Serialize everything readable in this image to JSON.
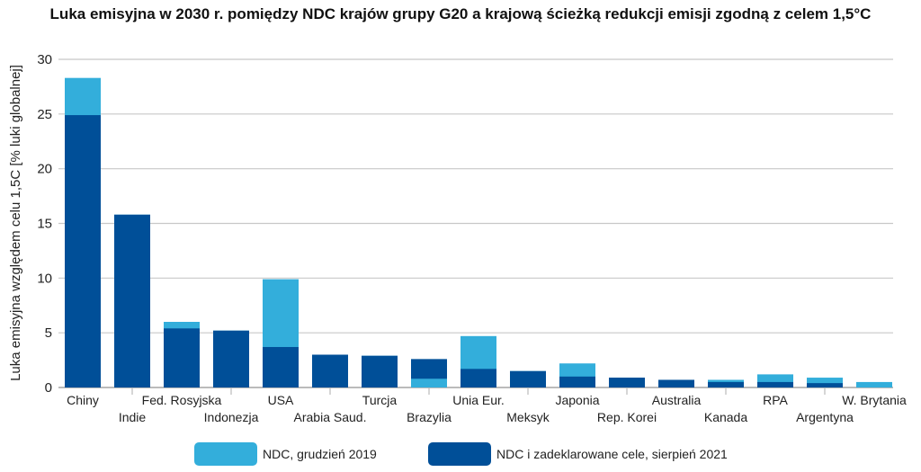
{
  "chart_data": {
    "type": "bar",
    "title": "Luka emisyjna w 2030 r. pomiędzy NDC krajów grupy G20 a krajową ścieżką redukcji emisji zgodną z celem 1,5°C",
    "xlabel": "",
    "ylabel": "Luka emisyjna względem celu 1,5C [% luki globalnej]",
    "ylim": [
      0,
      30
    ],
    "yticks": [
      "0",
      "5",
      "10",
      "15",
      "20",
      "25",
      "30"
    ],
    "grid": true,
    "legend_position": "bottom",
    "categories": [
      "Chiny",
      "Indie",
      "Fed. Rosyjska",
      "Indonezja",
      "USA",
      "Arabia Saud.",
      "Turcja",
      "Brazylia",
      "Unia Eur.",
      "Meksyk",
      "Japonia",
      "Rep. Korei",
      "Australia",
      "Kanada",
      "RPA",
      "Argentyna",
      "W. Brytania"
    ],
    "series": [
      {
        "name": "NDC, grudzień 2019",
        "color": "#33aedb",
        "values": [
          28.3,
          15.8,
          6.0,
          5.2,
          9.9,
          3.0,
          2.9,
          0.8,
          4.7,
          1.5,
          2.2,
          0.9,
          0.7,
          0.7,
          1.2,
          0.9,
          0.5
        ]
      },
      {
        "name": "NDC i zadeklarowane cele, sierpień 2021",
        "color": "#004f98",
        "values": [
          24.9,
          15.8,
          5.4,
          5.2,
          3.7,
          3.0,
          2.9,
          2.6,
          1.7,
          1.5,
          1.0,
          0.9,
          0.7,
          0.5,
          0.5,
          0.4,
          0
        ]
      }
    ]
  }
}
